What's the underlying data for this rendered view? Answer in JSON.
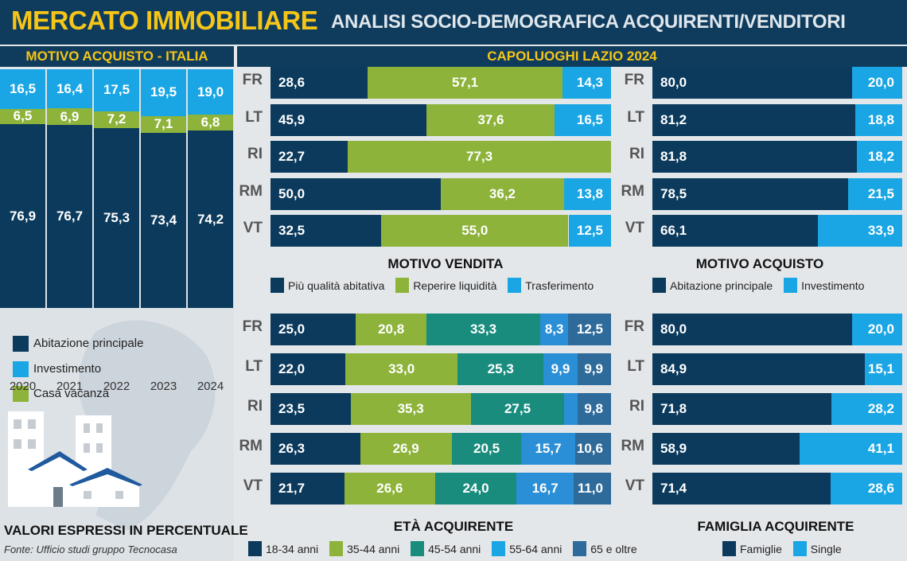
{
  "header": {
    "title": "MERCATO IMMOBILIARE",
    "subtitle": "ANALISI SOCIO-DEMOGRAFICA ACQUIRENTI/VENDITORI"
  },
  "colors": {
    "navy": "#0f3c5d",
    "yellow": "#f5c518",
    "dark_blue": "#0b3a5c",
    "light_blue": "#1aa6e4",
    "green": "#8db33a",
    "teal": "#1a8c7e",
    "blue_55": "#2a8fd6",
    "steel": "#2e6a9a"
  },
  "left": {
    "title": "MOTIVO ACQUISTO - ITALIA",
    "legend": [
      "Abitazione principale",
      "Investimento",
      "Casa vacanza"
    ],
    "note": "VALORI ESPRESSI IN PERCENTUALE",
    "source": "Fonte: Ufficio studi gruppo Tecnocasa"
  },
  "lazio_header": "CAPOLUOGHI LAZIO 2024",
  "sections": {
    "vendita_title": "MOTIVO VENDITA",
    "vendita_legend": [
      "Più qualità abitativa",
      "Reperire liquidità",
      "Trasferimento"
    ],
    "acquisto_title": "MOTIVO ACQUISTO",
    "acquisto_legend": [
      "Abitazione principale",
      "Investimento"
    ],
    "eta_title": "ETÀ ACQUIRENTE",
    "eta_legend": [
      "18-34 anni",
      "35-44 anni",
      "45-54 anni",
      "55-64 anni",
      "65 e oltre"
    ],
    "famiglia_title": "FAMIGLIA ACQUIRENTE",
    "famiglia_legend": [
      "Famiglie",
      "Single"
    ]
  },
  "chart_data": [
    {
      "type": "bar",
      "stacked": true,
      "orientation": "vertical",
      "title": "MOTIVO ACQUISTO - ITALIA",
      "categories": [
        "2020",
        "2021",
        "2022",
        "2023",
        "2024"
      ],
      "series": [
        {
          "name": "Abitazione principale",
          "values": [
            76.9,
            76.7,
            75.3,
            73.4,
            74.2
          ],
          "labels": [
            "76,9",
            "76,7",
            "75,3",
            "73,4",
            "74,2"
          ]
        },
        {
          "name": "Casa vacanza",
          "values": [
            6.5,
            6.9,
            7.2,
            7.1,
            6.8
          ],
          "labels": [
            "6,5",
            "6,9",
            "7,2",
            "7,1",
            "6,8"
          ]
        },
        {
          "name": "Investimento",
          "values": [
            16.5,
            16.4,
            17.5,
            19.5,
            19.0
          ],
          "labels": [
            "16,5",
            "16,4",
            "17,5",
            "19,5",
            "19,0"
          ]
        }
      ]
    },
    {
      "type": "bar",
      "stacked": true,
      "orientation": "horizontal",
      "title": "MOTIVO VENDITA",
      "categories": [
        "FR",
        "LT",
        "RI",
        "RM",
        "VT"
      ],
      "series": [
        {
          "name": "Più qualità abitativa",
          "values": [
            28.6,
            45.9,
            22.7,
            50.0,
            32.5
          ],
          "labels": [
            "28,6",
            "45,9",
            "22,7",
            "50,0",
            "32,5"
          ]
        },
        {
          "name": "Reperire liquidità",
          "values": [
            57.1,
            37.6,
            77.3,
            36.2,
            55.0
          ],
          "labels": [
            "57,1",
            "37,6",
            "77,3",
            "36,2",
            "55,0"
          ]
        },
        {
          "name": "Trasferimento",
          "values": [
            14.3,
            16.5,
            0,
            13.8,
            12.5
          ],
          "labels": [
            "14,3",
            "16,5",
            "",
            "13,8",
            "12,5"
          ]
        }
      ]
    },
    {
      "type": "bar",
      "stacked": true,
      "orientation": "horizontal",
      "title": "MOTIVO ACQUISTO",
      "categories": [
        "FR",
        "LT",
        "RI",
        "RM",
        "VT"
      ],
      "series": [
        {
          "name": "Abitazione principale",
          "values": [
            80.0,
            81.2,
            81.8,
            78.5,
            66.1
          ],
          "labels": [
            "80,0",
            "81,2",
            "81,8",
            "78,5",
            "66,1"
          ]
        },
        {
          "name": "Investimento",
          "values": [
            20.0,
            18.8,
            18.2,
            21.5,
            33.9
          ],
          "labels": [
            "20,0",
            "18,8",
            "18,2",
            "21,5",
            "33,9"
          ]
        }
      ]
    },
    {
      "type": "bar",
      "stacked": true,
      "orientation": "horizontal",
      "title": "ETÀ ACQUIRENTE",
      "categories": [
        "FR",
        "LT",
        "RI",
        "RM",
        "VT"
      ],
      "series": [
        {
          "name": "18-34 anni",
          "values": [
            25.0,
            22.0,
            23.5,
            26.3,
            21.7
          ],
          "labels": [
            "25,0",
            "22,0",
            "23,5",
            "26,3",
            "21,7"
          ]
        },
        {
          "name": "35-44 anni",
          "values": [
            20.8,
            33.0,
            35.3,
            26.9,
            26.6
          ],
          "labels": [
            "20,8",
            "33,0",
            "35,3",
            "26,9",
            "26,6"
          ]
        },
        {
          "name": "45-54 anni",
          "values": [
            33.3,
            25.3,
            27.5,
            20.5,
            24.0
          ],
          "labels": [
            "33,3",
            "25,3",
            "27,5",
            "20,5",
            "24,0"
          ]
        },
        {
          "name": "55-64 anni",
          "values": [
            8.3,
            9.9,
            3.9,
            15.7,
            16.7
          ],
          "labels": [
            "8,3",
            "9,9",
            "",
            "15,7",
            "16,7"
          ]
        },
        {
          "name": "65 e oltre",
          "values": [
            12.5,
            9.9,
            9.8,
            10.6,
            11.0
          ],
          "labels": [
            "12,5",
            "9,9",
            "9,8",
            "10,6",
            "11,0"
          ]
        }
      ]
    },
    {
      "type": "bar",
      "stacked": true,
      "orientation": "horizontal",
      "title": "FAMIGLIA ACQUIRENTE",
      "categories": [
        "FR",
        "LT",
        "RI",
        "RM",
        "VT"
      ],
      "series": [
        {
          "name": "Famiglie",
          "values": [
            80.0,
            84.9,
            71.8,
            58.9,
            71.4
          ],
          "labels": [
            "80,0",
            "84,9",
            "71,8",
            "58,9",
            "71,4"
          ]
        },
        {
          "name": "Single",
          "values": [
            20.0,
            15.1,
            28.2,
            41.1,
            28.6
          ],
          "labels": [
            "20,0",
            "15,1",
            "28,2",
            "41,1",
            "28,6"
          ]
        }
      ]
    }
  ]
}
